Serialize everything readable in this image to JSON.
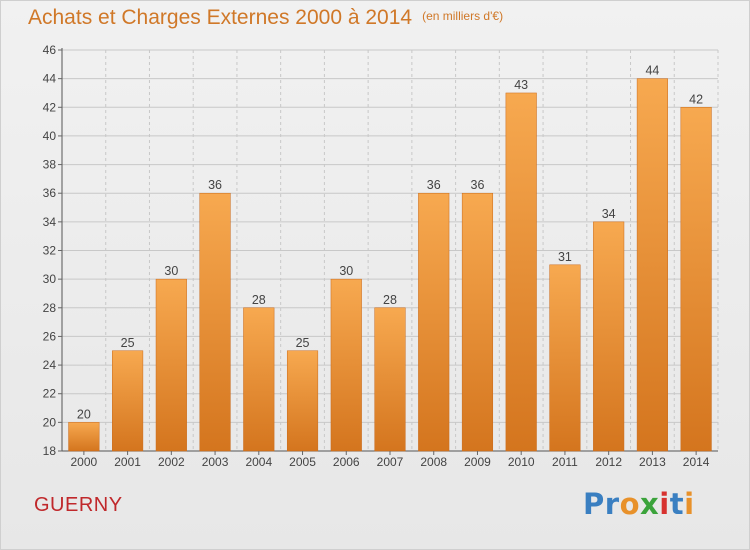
{
  "title": "Achats et Charges Externes 2000 à 2014",
  "unit": "(en milliers d'€)",
  "commune": "GUERNY",
  "logo": {
    "text": "Proxiti",
    "letters": [
      {
        "ch": "P",
        "color": "#3a7fc1"
      },
      {
        "ch": "r",
        "color": "#3a7fc1"
      },
      {
        "ch": "o",
        "color": "#e8912a"
      },
      {
        "ch": "x",
        "color": "#3ba33b"
      },
      {
        "ch": "i",
        "color": "#d7322f"
      },
      {
        "ch": "t",
        "color": "#3a7fc1"
      },
      {
        "ch": "i",
        "color": "#e8912a"
      }
    ]
  },
  "colors": {
    "title": "#d07828",
    "commune": "#c0282b",
    "bar_light": "#f7a950",
    "bar_dark": "#d4751e",
    "grid": "#c8c8c8"
  },
  "chart_data": {
    "type": "bar",
    "categories": [
      "2000",
      "2001",
      "2002",
      "2003",
      "2004",
      "2005",
      "2006",
      "2007",
      "2008",
      "2009",
      "2010",
      "2011",
      "2012",
      "2013",
      "2014"
    ],
    "values": [
      20,
      25,
      30,
      36,
      28,
      25,
      30,
      28,
      36,
      36,
      43,
      31,
      34,
      44,
      42
    ],
    "ylim": [
      18,
      46
    ],
    "yticks": [
      18,
      20,
      22,
      24,
      26,
      28,
      30,
      32,
      34,
      36,
      38,
      40,
      42,
      44,
      46
    ],
    "grid": true,
    "data_labels": true
  }
}
